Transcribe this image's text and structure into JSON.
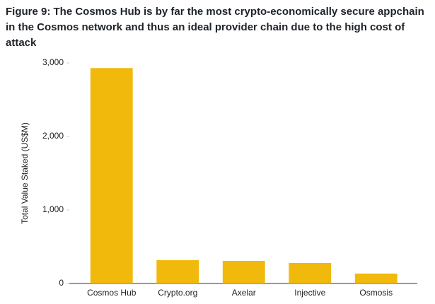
{
  "chart_data": {
    "type": "bar",
    "title": "Figure 9: The Cosmos Hub is by far the most crypto-economically secure appchain in the Cosmos network and thus an ideal provider chain due to the high cost of attack",
    "y_label": "Total Value Staked (US$M)",
    "categories": [
      "Cosmos Hub",
      "Crypto.org",
      "Axelar",
      "Injective",
      "Osmosis"
    ],
    "values": [
      2930,
      317,
      308,
      279,
      135
    ],
    "color": "#f0b90b",
    "ylim": [
      0,
      3000
    ],
    "yticks": [
      0,
      {
        "value": 1000,
        "label": "1,000"
      },
      {
        "value": 2000,
        "label": "2,000"
      },
      {
        "value": 3000,
        "label": "3,000"
      }
    ],
    "grid": false
  }
}
